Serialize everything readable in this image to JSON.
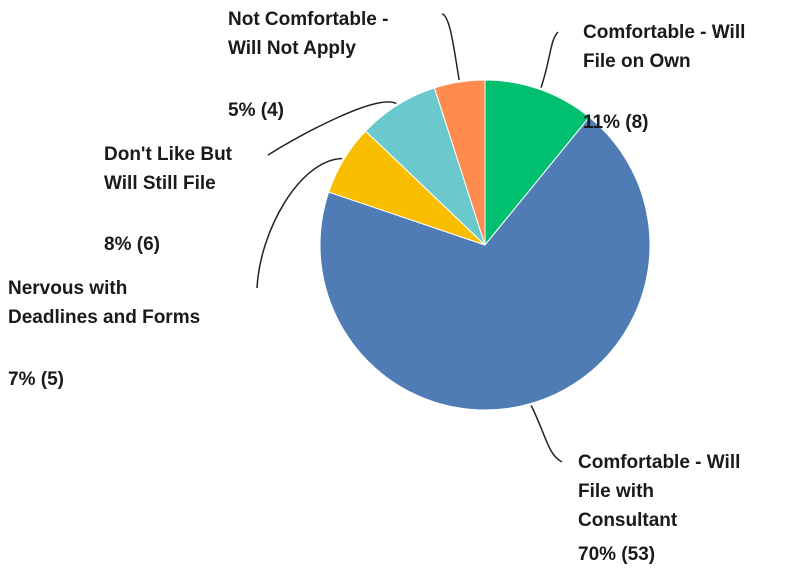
{
  "chart_data": {
    "type": "pie",
    "slices": [
      {
        "name_lines": [
          "Comfortable - Will",
          "File on Own"
        ],
        "value": 11,
        "count": 8,
        "value_label": "11% (8)",
        "color": "#00BF6F"
      },
      {
        "name_lines": [
          "Comfortable - Will",
          "File with",
          "Consultant"
        ],
        "value": 70,
        "count": 53,
        "value_label": "70% (53)",
        "color": "#507CB6"
      },
      {
        "name_lines": [
          "Nervous with",
          "Deadlines and Forms"
        ],
        "value": 7,
        "count": 5,
        "value_label": "7% (5)",
        "color": "#F9BE00"
      },
      {
        "name_lines": [
          "Don't Like But",
          "Will Still File"
        ],
        "value": 8,
        "count": 6,
        "value_label": "8% (6)",
        "color": "#6BC8CD"
      },
      {
        "name_lines": [
          "Not Comfortable -",
          "Will Not Apply"
        ],
        "value": 5,
        "count": 4,
        "value_label": "5% (4)",
        "color": "#FF8B4F"
      }
    ]
  }
}
